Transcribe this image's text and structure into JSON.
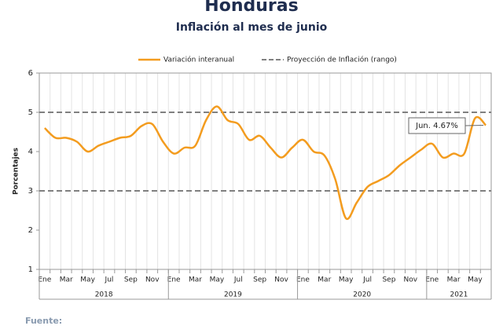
{
  "chart_data": {
    "type": "line",
    "title": "Honduras",
    "subtitle": "Inflación al mes de junio",
    "y_label": "Porcentajes",
    "source": "Fuente:",
    "categories": [
      "Ene",
      null,
      "Mar",
      null,
      "May",
      null,
      "Jul",
      null,
      "Sep",
      null,
      "Nov",
      null,
      "Ene",
      null,
      "Mar",
      null,
      "May",
      null,
      "Jul",
      null,
      "Sep",
      null,
      "Nov",
      null,
      "Ene",
      null,
      "Mar",
      null,
      "May",
      null,
      "Jul",
      null,
      "Sep",
      null,
      "Nov",
      null,
      "Ene",
      null,
      "Mar",
      null,
      "May",
      null
    ],
    "x_groups": [
      "2018",
      "2019",
      "2020",
      "2021"
    ],
    "series": [
      {
        "name": "Variación interanual",
        "color": "#f39c1f",
        "values": [
          4.6,
          4.35,
          4.35,
          4.25,
          4.0,
          4.15,
          4.25,
          4.35,
          4.4,
          4.65,
          4.7,
          4.25,
          3.95,
          4.1,
          4.15,
          4.8,
          5.15,
          4.8,
          4.7,
          4.3,
          4.4,
          4.1,
          3.85,
          4.1,
          4.3,
          4.0,
          3.9,
          3.3,
          2.3,
          2.7,
          3.1,
          3.25,
          3.4,
          3.65,
          3.85,
          4.05,
          4.2,
          3.85,
          3.95,
          3.95,
          4.85,
          4.67
        ]
      }
    ],
    "band": {
      "name": "Proyección de Inflación (rango)",
      "color": "#808080",
      "values": [
        3,
        5
      ]
    },
    "annotation": {
      "text": "Jun. 4.67%"
    },
    "ylim": [
      1,
      6
    ],
    "yticks": [
      1,
      2,
      3,
      4,
      5,
      6
    ]
  }
}
